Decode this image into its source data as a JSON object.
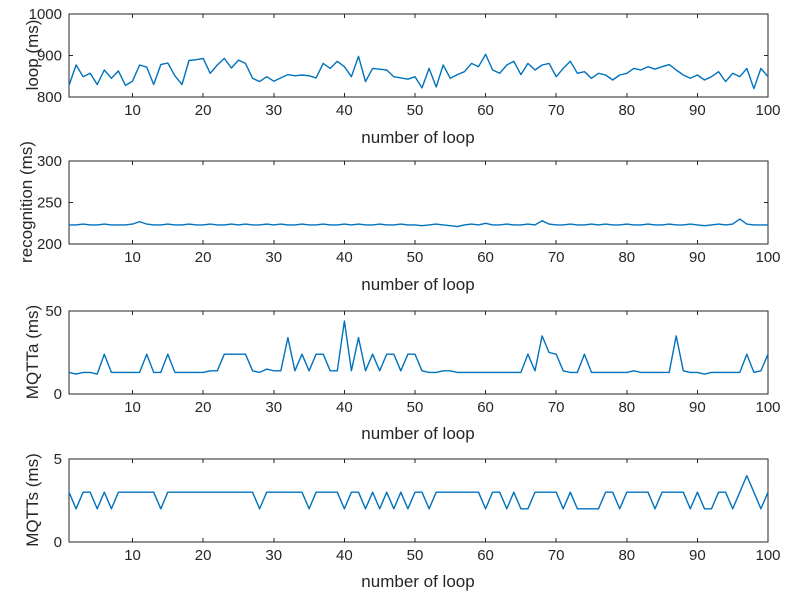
{
  "figure": {
    "background": "#ffffff",
    "axis_color": "#262626",
    "line_color": "#0072BD"
  },
  "chart_data": [
    {
      "type": "line",
      "title": "",
      "xlabel": "number of loop",
      "ylabel": "loop (ms)",
      "xlim": [
        1,
        100
      ],
      "ylim": [
        800,
        1000
      ],
      "xticks": [
        10,
        20,
        30,
        40,
        50,
        60,
        70,
        80,
        90,
        100
      ],
      "yticks": [
        800,
        900,
        1000
      ],
      "grid": false,
      "legend": "none",
      "values": [
        828,
        877,
        849,
        857,
        830,
        865,
        845,
        863,
        828,
        838,
        877,
        872,
        830,
        878,
        882,
        851,
        830,
        888,
        890,
        893,
        857,
        877,
        893,
        870,
        889,
        881,
        845,
        837,
        849,
        838,
        846,
        854,
        851,
        853,
        851,
        846,
        881,
        869,
        886,
        873,
        849,
        898,
        837,
        869,
        867,
        865,
        849,
        846,
        843,
        849,
        822,
        869,
        824,
        877,
        845,
        854,
        861,
        881,
        873,
        903,
        865,
        857,
        877,
        886,
        854,
        881,
        865,
        877,
        881,
        849,
        869,
        886,
        857,
        861,
        845,
        857,
        853,
        841,
        853,
        857,
        869,
        865,
        873,
        867,
        873,
        878,
        865,
        853,
        845,
        853,
        841,
        849,
        861,
        837,
        857,
        849,
        869,
        820,
        869,
        849
      ]
    },
    {
      "type": "line",
      "title": "",
      "xlabel": "number of loop",
      "ylabel": "recognition (ms)",
      "xlim": [
        1,
        100
      ],
      "ylim": [
        200,
        300
      ],
      "xticks": [
        10,
        20,
        30,
        40,
        50,
        60,
        70,
        80,
        90,
        100
      ],
      "yticks": [
        200,
        250,
        300
      ],
      "grid": false,
      "legend": "none",
      "values": [
        223,
        223,
        224,
        223,
        223,
        224,
        223,
        223,
        223,
        224,
        227,
        224,
        223,
        223,
        224,
        223,
        223,
        224,
        223,
        223,
        224,
        223,
        223,
        224,
        223,
        224,
        223,
        223,
        224,
        223,
        224,
        223,
        223,
        224,
        223,
        223,
        224,
        223,
        223,
        224,
        223,
        224,
        223,
        223,
        224,
        223,
        223,
        224,
        223,
        223,
        222,
        223,
        224,
        223,
        222,
        221,
        223,
        224,
        223,
        225,
        223,
        223,
        224,
        223,
        223,
        224,
        223,
        228,
        224,
        223,
        223,
        224,
        223,
        223,
        224,
        223,
        224,
        223,
        223,
        224,
        223,
        223,
        224,
        223,
        223,
        224,
        223,
        223,
        224,
        223,
        222,
        223,
        224,
        223,
        224,
        230,
        224,
        223,
        223,
        223
      ]
    },
    {
      "type": "line",
      "title": "",
      "xlabel": "number of loop",
      "ylabel": "MQTTa (ms)",
      "xlim": [
        1,
        100
      ],
      "ylim": [
        0,
        50
      ],
      "xticks": [
        10,
        20,
        30,
        40,
        50,
        60,
        70,
        80,
        90,
        100
      ],
      "yticks": [
        0,
        50
      ],
      "grid": false,
      "legend": "none",
      "values": [
        13,
        12,
        13,
        13,
        12,
        24,
        13,
        13,
        13,
        13,
        13,
        24,
        13,
        13,
        24,
        13,
        13,
        13,
        13,
        13,
        14,
        14,
        24,
        24,
        24,
        24,
        14,
        13,
        15,
        14,
        14,
        34,
        14,
        24,
        14,
        24,
        24,
        14,
        14,
        44,
        14,
        34,
        14,
        24,
        14,
        24,
        24,
        14,
        24,
        24,
        14,
        13,
        13,
        14,
        14,
        13,
        13,
        13,
        13,
        13,
        13,
        13,
        13,
        13,
        13,
        24,
        14,
        35,
        25,
        24,
        14,
        13,
        13,
        24,
        13,
        13,
        13,
        13,
        13,
        13,
        14,
        13,
        13,
        13,
        13,
        13,
        35,
        14,
        13,
        13,
        12,
        13,
        13,
        13,
        13,
        13,
        24,
        13,
        14,
        24
      ]
    },
    {
      "type": "line",
      "title": "",
      "xlabel": "number of loop",
      "ylabel": "MQTTs (ms)",
      "xlim": [
        1,
        100
      ],
      "ylim": [
        0,
        5
      ],
      "xticks": [
        10,
        20,
        30,
        40,
        50,
        60,
        70,
        80,
        90,
        100
      ],
      "yticks": [
        0,
        5
      ],
      "grid": false,
      "legend": "none",
      "values": [
        3,
        2,
        3,
        3,
        2,
        3,
        2,
        3,
        3,
        3,
        3,
        3,
        3,
        2,
        3,
        3,
        3,
        3,
        3,
        3,
        3,
        3,
        3,
        3,
        3,
        3,
        3,
        2,
        3,
        3,
        3,
        3,
        3,
        3,
        2,
        3,
        3,
        3,
        3,
        2,
        3,
        3,
        2,
        3,
        2,
        3,
        2,
        3,
        2,
        3,
        3,
        2,
        3,
        3,
        3,
        3,
        3,
        3,
        3,
        2,
        3,
        3,
        2,
        3,
        2,
        2,
        3,
        3,
        3,
        3,
        2,
        3,
        2,
        2,
        2,
        2,
        3,
        3,
        2,
        3,
        3,
        3,
        3,
        2,
        3,
        3,
        3,
        3,
        2,
        3,
        2,
        2,
        3,
        3,
        2,
        3,
        4,
        3,
        2,
        3
      ]
    }
  ]
}
